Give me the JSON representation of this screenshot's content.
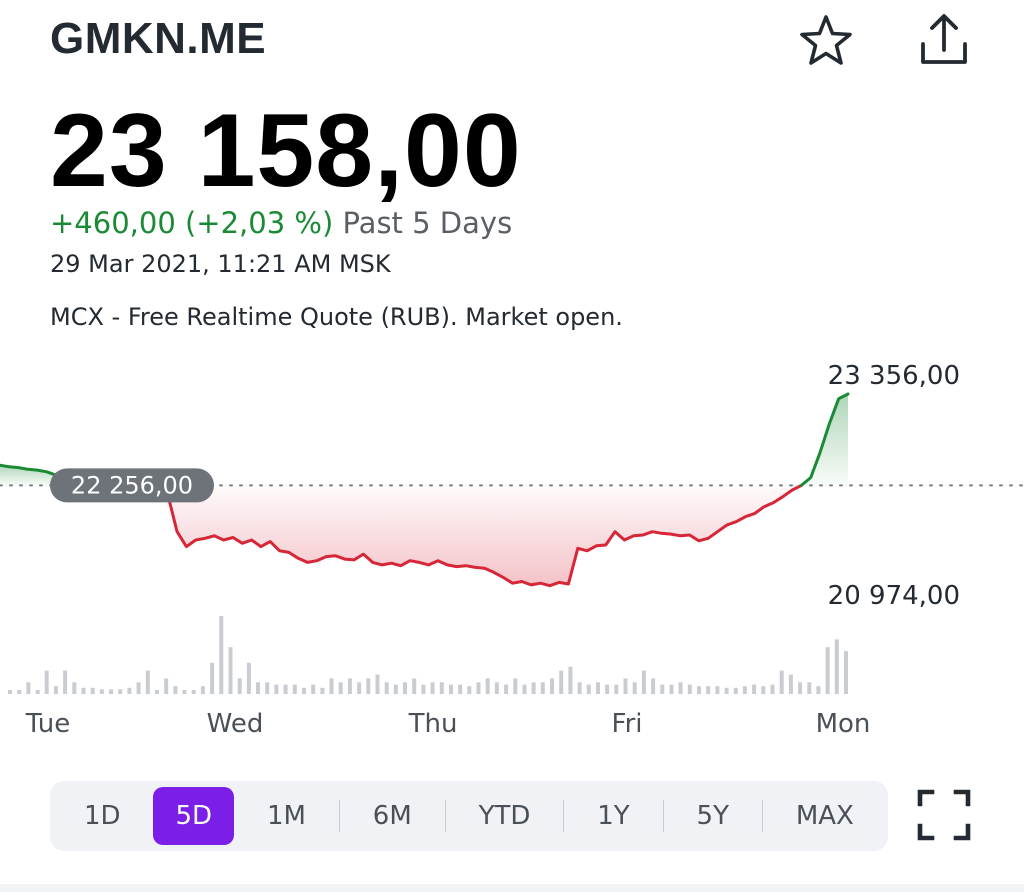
{
  "header": {
    "ticker": "GMKN.ME",
    "icons": {
      "favorite": "star-icon",
      "share": "share-icon"
    }
  },
  "quote": {
    "price": "23 158,00",
    "change": "+460,00 (+2,03 %)",
    "period": "Past 5 Days",
    "timestamp": "29 Mar 2021, 11:21 AM MSK",
    "note": "MCX - Free Realtime Quote (RUB). Market open."
  },
  "colors": {
    "up": "#1a8a35",
    "down": "#d62638",
    "accent": "#7b1fe8",
    "volume": "#c9ccd1"
  },
  "range_selector": {
    "options": [
      "1D",
      "5D",
      "1M",
      "6M",
      "YTD",
      "1Y",
      "5Y",
      "MAX"
    ],
    "selected": "5D",
    "expand_icon": "expand-icon"
  },
  "chart_data": {
    "type": "line",
    "x_labels": [
      "Tue",
      "Wed",
      "Thu",
      "Fri",
      "Mon"
    ],
    "baseline": 22256,
    "baseline_label": "22 256,00",
    "high_label": "23 356,00",
    "low_label": "20 974,00",
    "ylim": [
      20974,
      23356
    ],
    "series": [
      {
        "values": [
          22500,
          22480,
          22470,
          22450,
          22440,
          22420,
          22380,
          22390,
          22360,
          22320,
          22300,
          22280,
          22300,
          22290,
          22270,
          22290,
          22260,
          22256,
          22150,
          21700,
          21520,
          21600,
          21620,
          21650,
          21600,
          21630,
          21560,
          21600,
          21520,
          21580,
          21470,
          21450,
          21380,
          21330,
          21350,
          21400,
          21410,
          21370,
          21360,
          21430,
          21330,
          21300,
          21320,
          21290,
          21350,
          21330,
          21300,
          21350,
          21300,
          21280,
          21290,
          21270,
          21260,
          21210,
          21150,
          21080,
          21100,
          21060,
          21080,
          21050,
          21090,
          21070,
          21500,
          21470,
          21530,
          21540,
          21700,
          21600,
          21650,
          21660,
          21700,
          21680,
          21670,
          21650,
          21660,
          21590,
          21620,
          21700,
          21780,
          21820,
          21880,
          21920,
          22000,
          22050,
          22120,
          22200,
          22256,
          22350,
          22650,
          23000,
          23300,
          23356
        ]
      }
    ],
    "volume": [
      0.05,
      0.05,
      0.15,
      0.05,
      0.3,
      0.1,
      0.3,
      0.15,
      0.08,
      0.08,
      0.06,
      0.06,
      0.06,
      0.08,
      0.15,
      0.3,
      0.05,
      0.2,
      0.1,
      0.05,
      0.05,
      0.1,
      0.4,
      1.0,
      0.6,
      0.2,
      0.4,
      0.15,
      0.15,
      0.12,
      0.12,
      0.12,
      0.08,
      0.12,
      0.08,
      0.2,
      0.15,
      0.2,
      0.15,
      0.2,
      0.25,
      0.15,
      0.12,
      0.15,
      0.2,
      0.12,
      0.15,
      0.15,
      0.12,
      0.12,
      0.1,
      0.15,
      0.2,
      0.15,
      0.12,
      0.2,
      0.12,
      0.15,
      0.15,
      0.2,
      0.3,
      0.35,
      0.15,
      0.12,
      0.15,
      0.12,
      0.12,
      0.2,
      0.15,
      0.3,
      0.2,
      0.12,
      0.12,
      0.15,
      0.12,
      0.1,
      0.1,
      0.1,
      0.08,
      0.08,
      0.1,
      0.12,
      0.1,
      0.12,
      0.3,
      0.25,
      0.15,
      0.15,
      0.1,
      0.6,
      0.7,
      0.55
    ]
  }
}
